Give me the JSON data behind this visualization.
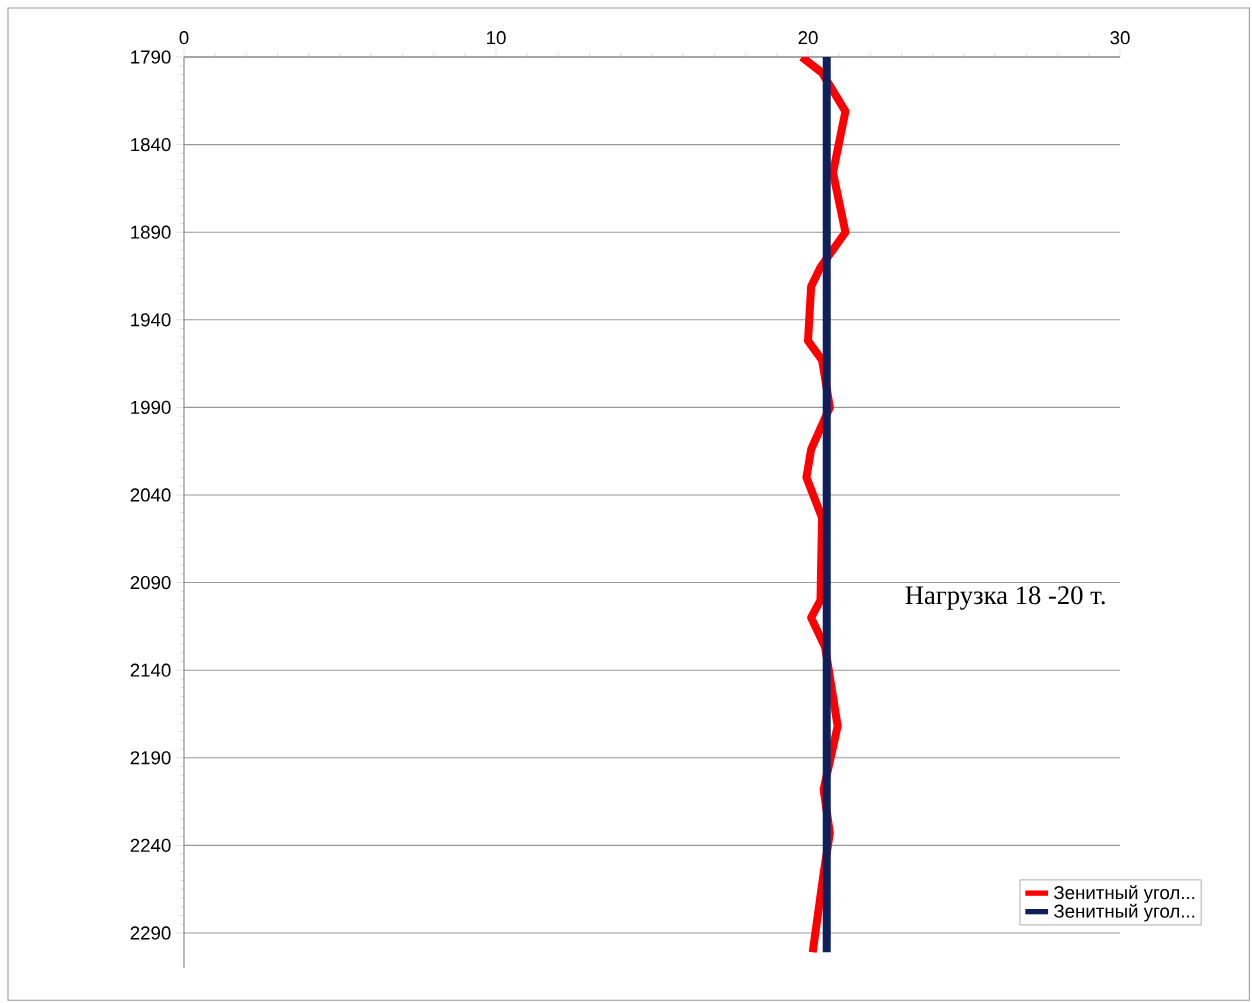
{
  "chart_data": {
    "type": "line",
    "xlim": [
      0,
      30
    ],
    "xticks": [
      0,
      10,
      20,
      30
    ],
    "ylim": [
      2310,
      1790
    ],
    "yticks": [
      1790,
      1840,
      1890,
      1940,
      1990,
      2040,
      2090,
      2140,
      2190,
      2240,
      2290
    ],
    "grid": "y",
    "legend": "bottom right",
    "marker": "none",
    "line_style": "solid",
    "annotations": [
      "Нагрузка 18 -20 т."
    ],
    "series": [
      {
        "name": "Зенитный угол...",
        "color": "#ff0000",
        "x": [
          19.8,
          20.45,
          21.2,
          20.8,
          21.2,
          20.4,
          20.1,
          20.0,
          20.45,
          20.7,
          20.1,
          19.95,
          20.45,
          20.4,
          20.1,
          20.55,
          20.95,
          20.5,
          20.7,
          20.5,
          20.15
        ],
        "values": [
          1790,
          1799,
          1821,
          1856,
          1890,
          1910,
          1921,
          1952,
          1963,
          1990,
          2014,
          2030,
          2053,
          2100,
          2110,
          2127,
          2172,
          2208,
          2233,
          2256,
          2301
        ]
      },
      {
        "name": "Зенитный угол...",
        "color": "#0d1f5c",
        "x": [
          20.6,
          20.6
        ],
        "values": [
          1790,
          2301
        ]
      }
    ]
  }
}
